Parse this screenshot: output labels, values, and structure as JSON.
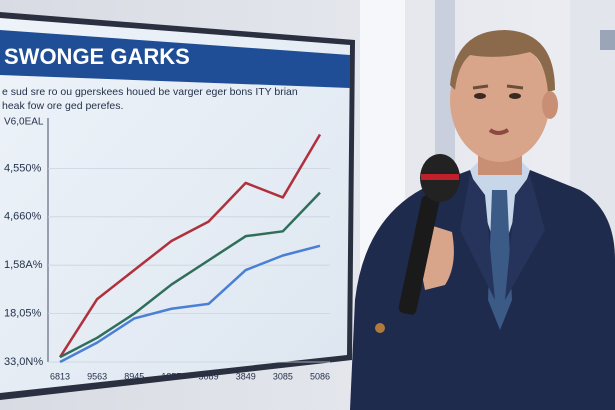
{
  "chart_data": {
    "type": "line",
    "title": "SWONGE GARKS",
    "subtitle_lines": [
      "e sud sre ro ou gperskees houed be varger eger bons ITY brian",
      "heak fow ore ged perefes."
    ],
    "y_label": "V6,0EAL",
    "categories": [
      "6813",
      "9563",
      "8945",
      "1857",
      "5089",
      "3849",
      "3085",
      "5086"
    ],
    "series": [
      {
        "color": "#b0303c",
        "values": [
          0.1,
          1.3,
          1.9,
          2.5,
          2.9,
          3.7,
          3.4,
          4.7
        ]
      },
      {
        "color": "#2f6e5a",
        "values": [
          0.1,
          0.5,
          1.0,
          1.6,
          2.1,
          2.6,
          2.7,
          3.5
        ]
      },
      {
        "color": "#4a7fd6",
        "values": [
          0.0,
          0.4,
          0.9,
          1.1,
          1.2,
          1.9,
          2.2,
          2.4
        ]
      }
    ],
    "ylim": [
      0,
      5
    ],
    "yticks": [
      {
        "value": 0,
        "label": "33,0N%"
      },
      {
        "value": 1,
        "label": "18,05%"
      },
      {
        "value": 2,
        "label": "1,58A%"
      },
      {
        "value": 3,
        "label": "4,660%"
      },
      {
        "value": 4,
        "label": "4,550%"
      }
    ],
    "grid": true
  }
}
